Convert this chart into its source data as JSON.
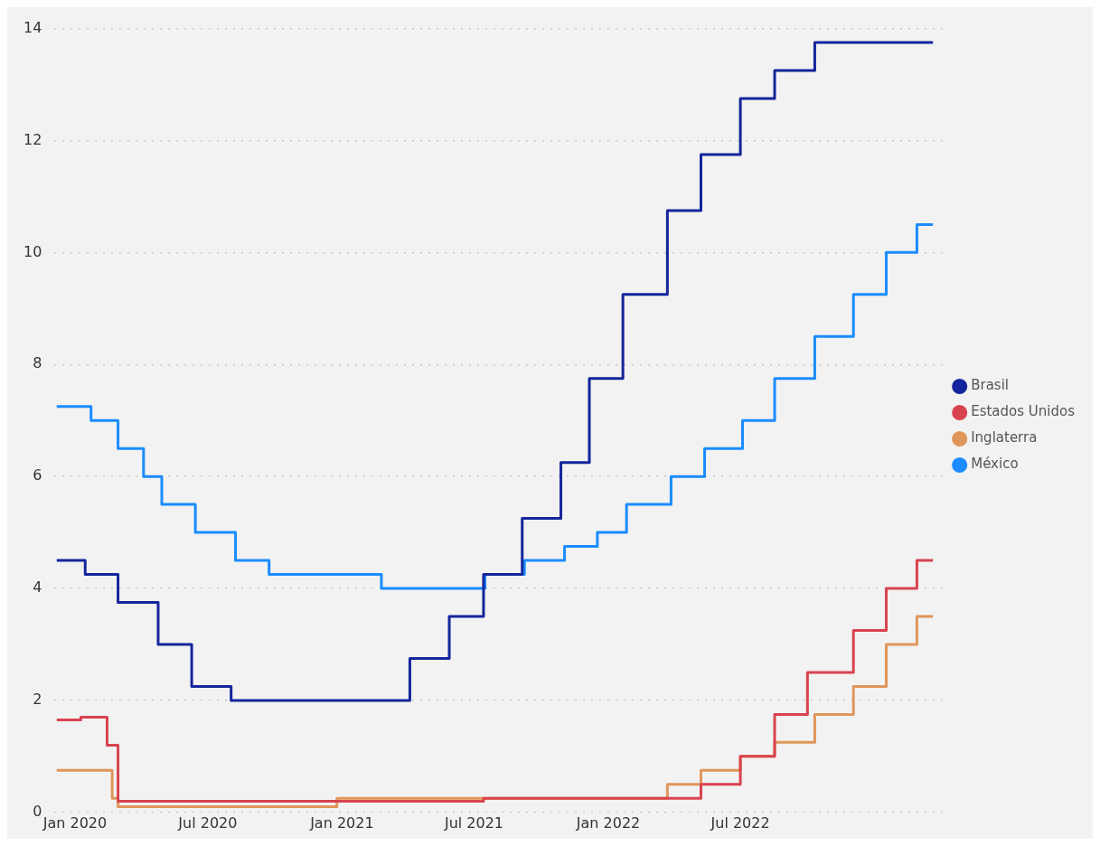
{
  "chart_data": {
    "type": "step",
    "xlim": [
      "2019-12-04",
      "2023-04-04"
    ],
    "xticks": [
      {
        "value": "2020-01-01",
        "label": "Jan 2020"
      },
      {
        "value": "2020-07-01",
        "label": "Jul 2020"
      },
      {
        "value": "2021-01-01",
        "label": "Jan 2021"
      },
      {
        "value": "2021-07-01",
        "label": "Jul 2021"
      },
      {
        "value": "2022-01-01",
        "label": "Jan 2022"
      },
      {
        "value": "2022-07-01",
        "label": "Jul 2022"
      }
    ],
    "ylim": [
      0,
      14
    ],
    "yticks": [
      0,
      2,
      4,
      6,
      8,
      10,
      12,
      14
    ],
    "grid": "y",
    "legend": "right",
    "marker": "none",
    "line_style": "solid",
    "series": [
      {
        "name": "Brasil",
        "color": "#15259c",
        "x": [
          "2019-12-07",
          "2020-01-15",
          "2020-02-29",
          "2020-04-24",
          "2020-06-09",
          "2020-08-02",
          "2021-04-04",
          "2021-05-28",
          "2021-07-14",
          "2021-09-05",
          "2021-10-28",
          "2021-12-06",
          "2022-01-21",
          "2022-03-23",
          "2022-05-08",
          "2022-07-01",
          "2022-08-17",
          "2022-10-11",
          "2023-03-22"
        ],
        "values": [
          4.5,
          4.25,
          3.75,
          3.0,
          2.25,
          2.0,
          2.75,
          3.5,
          4.25,
          5.25,
          6.25,
          7.75,
          9.25,
          10.75,
          11.75,
          12.75,
          13.25,
          13.75,
          13.75
        ]
      },
      {
        "name": "Estados Unidos",
        "color": "#d9434f",
        "x": [
          "2019-12-07",
          "2020-01-09",
          "2020-02-14",
          "2020-02-29",
          "2021-07-14",
          "2022-05-08",
          "2022-07-01",
          "2022-08-17",
          "2022-10-01",
          "2022-12-03",
          "2023-01-17",
          "2023-02-28",
          "2023-03-22"
        ],
        "values": [
          1.65,
          1.7,
          1.2,
          0.2,
          0.25,
          0.5,
          1.0,
          1.75,
          2.5,
          3.25,
          4.0,
          4.5,
          4.5
        ]
      },
      {
        "name": "Inglaterra",
        "color": "#e0965a",
        "x": [
          "2019-12-07",
          "2020-02-21",
          "2020-02-29",
          "2020-12-25",
          "2022-03-23",
          "2022-05-08",
          "2022-07-01",
          "2022-08-17",
          "2022-10-11",
          "2022-12-03",
          "2023-01-17",
          "2023-02-28",
          "2023-03-22"
        ],
        "values": [
          0.75,
          0.25,
          0.1,
          0.25,
          0.5,
          0.75,
          1.0,
          1.25,
          1.75,
          2.25,
          3.0,
          3.5,
          3.5
        ]
      },
      {
        "name": "México",
        "color": "#1a8cff",
        "x": [
          "2019-12-07",
          "2020-01-23",
          "2020-02-29",
          "2020-04-04",
          "2020-04-29",
          "2020-06-14",
          "2020-08-08",
          "2020-09-23",
          "2021-02-24",
          "2021-07-16",
          "2021-09-08",
          "2021-11-02",
          "2021-12-17",
          "2022-01-26",
          "2022-03-28",
          "2022-05-13",
          "2022-07-04",
          "2022-08-17",
          "2022-10-11",
          "2022-12-03",
          "2023-01-17",
          "2023-02-28",
          "2023-03-22"
        ],
        "values": [
          7.25,
          7.0,
          6.5,
          6.0,
          5.5,
          5.0,
          4.5,
          4.25,
          4.0,
          4.25,
          4.5,
          4.75,
          5.0,
          5.5,
          6.0,
          6.5,
          7.0,
          7.75,
          8.5,
          9.25,
          10.0,
          10.5,
          10.5
        ]
      }
    ]
  }
}
